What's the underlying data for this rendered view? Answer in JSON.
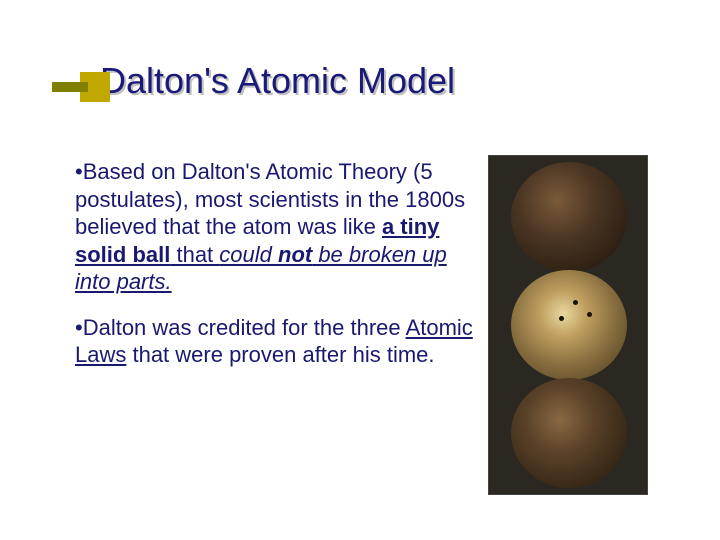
{
  "title": "Dalton's Atomic Model",
  "para1": {
    "t1": "Based on Dalton's Atomic Theory (5 postulates), most scientists in the 1800s believed that the atom was like ",
    "t2": "a tiny solid ball",
    "t3": " that ",
    "t4": "could ",
    "t5": "not",
    "t6": " be broken up into parts.",
    "bullet": "•"
  },
  "para2": {
    "t1": "Dalton was credited for the three ",
    "t2": "Atomic Laws",
    "t3": " that were proven after his time.",
    "bullet": "•"
  },
  "styling": {
    "title_color": "#1a1a7a",
    "title_shadow_color": "#c0c0c0",
    "body_color": "#191970",
    "accent_bar": "#808000",
    "accent_box": "#c0a800",
    "title_fontsize": 36,
    "body_fontsize": 22,
    "image_bg": "#2a2820",
    "sphere_colors": [
      "#4a3522",
      "#c0a060",
      "#5a4228"
    ]
  }
}
